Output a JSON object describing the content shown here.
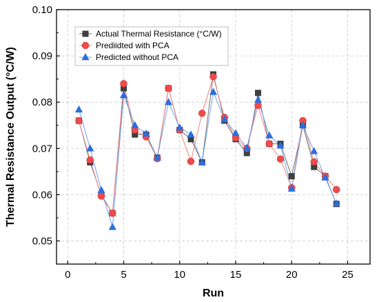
{
  "chart_data": {
    "type": "line",
    "xlabel": "Run",
    "ylabel": "Thermal Resistance Output (°C/W)",
    "xlim": [
      -1,
      27
    ],
    "ylim": [
      0.045,
      0.1
    ],
    "xticks": [
      0,
      5,
      10,
      15,
      20,
      25
    ],
    "yticks": [
      0.05,
      0.06,
      0.07,
      0.08,
      0.09,
      0.1
    ],
    "ytick_labels": [
      "0.05",
      "0.06",
      "0.07",
      "0.08",
      "0.09",
      "0.10"
    ],
    "grid": true,
    "legend_position": "top-left",
    "x": [
      1,
      2,
      3,
      4,
      5,
      6,
      7,
      8,
      9,
      10,
      11,
      12,
      13,
      14,
      15,
      16,
      17,
      18,
      19,
      20,
      21,
      22,
      23,
      24
    ],
    "series": [
      {
        "name": "Actual Thermal Resistance (°C/W)",
        "marker": "square",
        "color": "#3f3f3f",
        "line_color": "#6e6e6e",
        "values": [
          0.076,
          0.067,
          0.06,
          0.056,
          0.083,
          0.073,
          0.073,
          0.068,
          0.083,
          0.074,
          0.072,
          0.067,
          0.086,
          0.076,
          0.072,
          0.069,
          0.082,
          0.071,
          0.071,
          0.064,
          0.075,
          0.066,
          0.064,
          0.058
        ]
      },
      {
        "name": "Prediidted with PCA",
        "marker": "circle",
        "color": "#f04a4a",
        "line_color": "#f08080",
        "values": [
          0.076,
          0.0675,
          0.0597,
          0.056,
          0.084,
          0.074,
          0.0725,
          0.0678,
          0.083,
          0.074,
          0.0672,
          0.0776,
          0.0855,
          0.0767,
          0.0723,
          0.07,
          0.0793,
          0.071,
          0.0677,
          0.0615,
          0.076,
          0.0671,
          0.064,
          0.0611
        ]
      },
      {
        "name": "Predicted without PCA",
        "marker": "triangle",
        "color": "#2a6fe0",
        "line_color": "#6fa0ee",
        "values": [
          0.0784,
          0.07,
          0.061,
          0.053,
          0.0815,
          0.075,
          0.0732,
          0.068,
          0.08,
          0.0745,
          0.073,
          0.067,
          0.0822,
          0.0763,
          0.0733,
          0.0701,
          0.0805,
          0.0728,
          0.0706,
          0.0613,
          0.075,
          0.0694,
          0.0637,
          0.0581
        ]
      }
    ]
  }
}
